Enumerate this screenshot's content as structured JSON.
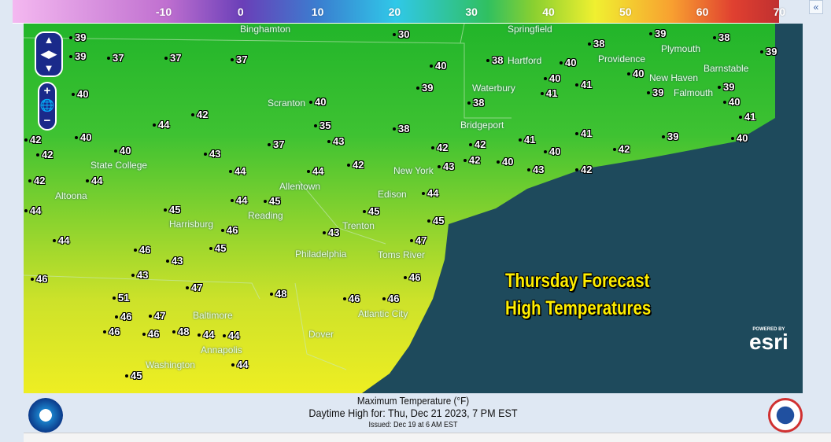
{
  "legend": {
    "ticks": [
      "-10",
      "0",
      "10",
      "20",
      "30",
      "40",
      "50",
      "60",
      "70"
    ],
    "tick_values": [
      -10,
      0,
      10,
      20,
      30,
      40,
      50,
      60,
      70
    ],
    "units": "°F"
  },
  "collapse_label": "«",
  "map": {
    "cities": [
      "Binghamton",
      "Springfield",
      "Providence",
      "Plymouth",
      "Hartford",
      "Waterbury",
      "New Haven",
      "Barnstable",
      "Scranton",
      "Bridgeport",
      "Falmouth",
      "State College",
      "New York",
      "Allentown",
      "Edison",
      "Altoona",
      "Reading",
      "Harrisburg",
      "Trenton",
      "Philadelphia",
      "Toms River",
      "Atlantic City",
      "Baltimore",
      "Dover",
      "Annapolis",
      "Washington"
    ],
    "temps": [
      "39",
      "39",
      "37",
      "37",
      "37",
      "30",
      "38",
      "38",
      "39",
      "38",
      "39",
      "40",
      "40",
      "40",
      "40",
      "40",
      "39",
      "41",
      "39",
      "38",
      "40",
      "41",
      "39",
      "42",
      "44",
      "42",
      "38",
      "40",
      "35",
      "37",
      "43",
      "42",
      "42",
      "41",
      "42",
      "41",
      "40",
      "39",
      "41",
      "40",
      "42",
      "40",
      "42",
      "44",
      "43",
      "42",
      "40",
      "40",
      "42",
      "43",
      "42",
      "44",
      "43",
      "44",
      "44",
      "44",
      "45",
      "44",
      "45",
      "45",
      "44",
      "45",
      "46",
      "43",
      "46",
      "43",
      "45",
      "47",
      "46",
      "46",
      "51",
      "43",
      "46",
      "47",
      "48",
      "46",
      "46",
      "48",
      "47",
      "45",
      "44",
      "44",
      "46",
      "46",
      "44"
    ],
    "zoom_in": "+",
    "zoom_out": "−",
    "overlay_title": [
      "Thursday Forecast",
      "High Temperatures"
    ],
    "esri_powered": "POWERED BY",
    "esri": "esri",
    "ocean_color": "#1e4a5c"
  },
  "caption": {
    "title": "Maximum Temperature (°F)",
    "valid": "Daytime High for: Thu, Dec 21 2023,   7 PM EST",
    "issued": "Issued: Dec 19 at 6 AM EST"
  },
  "logos": {
    "left": "NOAA",
    "right": "National Weather Service"
  }
}
